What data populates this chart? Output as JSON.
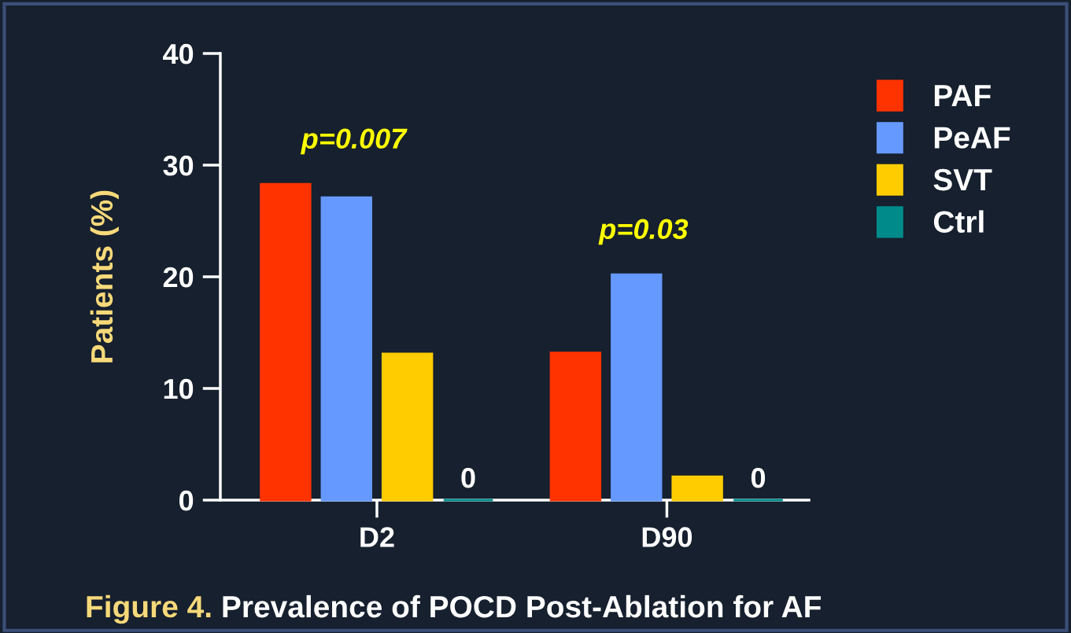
{
  "chart_data": {
    "type": "bar",
    "title": "Figure 4. Prevalence of POCD Post-Ablation for AF",
    "ylabel": "Patients (%)",
    "categories": [
      "D2",
      "D90"
    ],
    "series": [
      {
        "name": "PAF",
        "color": "#ff3300",
        "values": [
          28.3,
          13.2
        ]
      },
      {
        "name": "PeAF",
        "color": "#6699ff",
        "values": [
          27.1,
          20.2
        ]
      },
      {
        "name": "SVT",
        "color": "#ffcc00",
        "values": [
          13.1,
          2.1
        ]
      },
      {
        "name": "Ctrl",
        "color": "#008b8b",
        "values": [
          0,
          0
        ],
        "value_labels": [
          "0",
          "0"
        ]
      }
    ],
    "annotations": [
      "p=0.007",
      "p=0.03"
    ],
    "ylim": [
      0,
      40
    ],
    "yticks": [
      0,
      10,
      20,
      30,
      40
    ],
    "grid": false,
    "legend": "top right"
  }
}
